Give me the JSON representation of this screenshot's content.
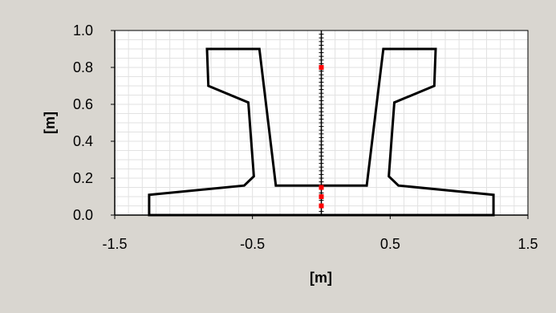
{
  "chart_data": {
    "type": "scatter",
    "xlabel": "[m]",
    "ylabel": "[m]",
    "xlim": [
      -1.5,
      1.5
    ],
    "ylim": [
      0,
      1.0
    ],
    "x_ticks": [
      -1.5,
      -0.5,
      0.5,
      1.5
    ],
    "x_tick_labels": [
      "-1.5",
      "-0.5",
      "0.5",
      "1.5"
    ],
    "y_ticks": [
      0,
      0.2,
      0.4,
      0.6,
      0.8,
      1.0
    ],
    "y_tick_labels": [
      "0.0",
      "0.2",
      "0.4",
      "0.6",
      "0.8",
      "1.0"
    ],
    "grid": true,
    "colors": {
      "background": "#d9d6d0",
      "plot_area": "#ffffff",
      "grid": "#e2e2e2",
      "outline": "#000000",
      "points": "#ff0000"
    },
    "section_outline": [
      [
        -1.25,
        0.0
      ],
      [
        1.25,
        0.0
      ],
      [
        1.25,
        0.11
      ],
      [
        0.56,
        0.16
      ],
      [
        0.49,
        0.21
      ],
      [
        0.53,
        0.61
      ],
      [
        0.82,
        0.7
      ],
      [
        0.83,
        0.9
      ],
      [
        0.45,
        0.9
      ],
      [
        0.33,
        0.16
      ],
      [
        -0.33,
        0.16
      ],
      [
        -0.45,
        0.9
      ],
      [
        -0.83,
        0.9
      ],
      [
        -0.82,
        0.7
      ],
      [
        -0.53,
        0.61
      ],
      [
        -0.49,
        0.21
      ],
      [
        -0.56,
        0.16
      ],
      [
        -1.25,
        0.11
      ],
      [
        -1.25,
        0.0
      ]
    ],
    "axis_line": {
      "x": 0,
      "y_range": [
        0,
        1.0
      ],
      "tick_step": 0.02
    },
    "points": [
      {
        "x": 0,
        "y": 0.8
      },
      {
        "x": 0,
        "y": 0.15
      },
      {
        "x": 0,
        "y": 0.1
      },
      {
        "x": 0,
        "y": 0.05
      }
    ]
  }
}
